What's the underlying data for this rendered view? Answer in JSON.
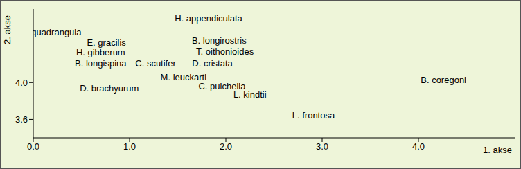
{
  "chart_data": {
    "type": "scatter",
    "x_label": "1. akse",
    "y_label": "2. akse",
    "labels": [
      "C. quadrangula",
      "H. appendiculata",
      "E. gracilis",
      "B. longirostris",
      "H. gibberum",
      "T. oithonioides",
      "B. longispina",
      "C. scutifer",
      "D. cristata",
      "M. leuckarti",
      "B. coregoni",
      "D. brachyurum",
      "C. pulchella",
      "L. kindtii",
      "L. frontosa"
    ],
    "x": [
      0.18,
      1.82,
      0.76,
      1.93,
      0.7,
      1.99,
      0.7,
      1.27,
      1.86,
      1.56,
      4.26,
      0.79,
      1.96,
      2.25,
      2.91
    ],
    "values": [
      4.54,
      4.69,
      4.43,
      4.45,
      4.32,
      4.33,
      4.2,
      4.2,
      4.2,
      4.05,
      4.02,
      3.93,
      3.95,
      3.86,
      3.64
    ],
    "xlim": [
      0,
      5
    ],
    "xticks": [
      {
        "value": 0,
        "label": "0.0"
      },
      {
        "value": 1,
        "label": "1.0"
      },
      {
        "value": 2,
        "label": "2.0"
      },
      {
        "value": 3,
        "label": "3.0"
      },
      {
        "value": 4,
        "label": "4.0"
      }
    ],
    "ylim": [
      3.4,
      4.8
    ],
    "yticks": [
      3.6,
      {
        "value": 4,
        "label": "4.0"
      }
    ],
    "marker": "none",
    "grid": false
  }
}
